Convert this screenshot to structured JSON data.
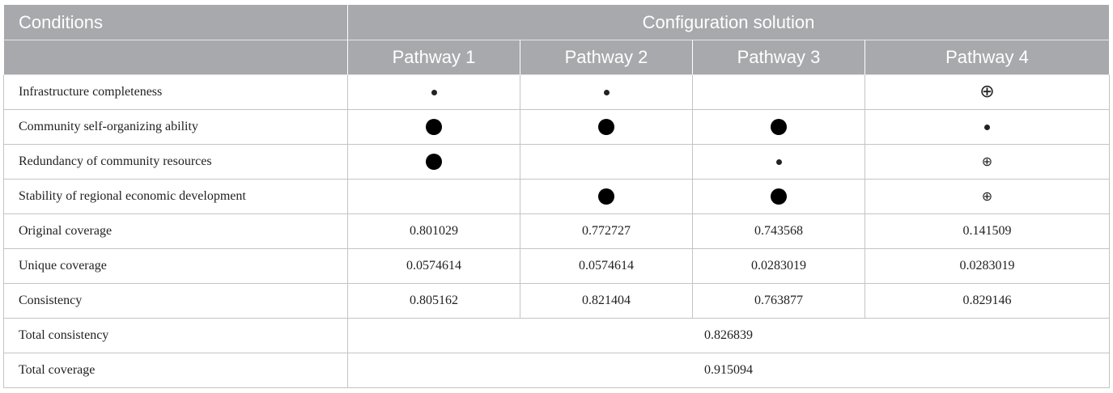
{
  "header": {
    "conditions": "Conditions",
    "configuration": "Configuration solution",
    "pathways": [
      "Pathway 1",
      "Pathway 2",
      "Pathway 3",
      "Pathway 4"
    ]
  },
  "legend_symbols": {
    "core_present": "large-filled-circle",
    "peripheral_present": "small-filled-circle",
    "core_absent": "large-circled-plus",
    "peripheral_absent": "small-circled-plus",
    "circled_plus_glyph": "⊕"
  },
  "conditions": [
    {
      "label": "Infrastructure completeness",
      "cells": [
        "small-dot",
        "small-dot",
        "",
        "oplus-big"
      ]
    },
    {
      "label": "Community self-organizing ability",
      "cells": [
        "big-dot",
        "big-dot",
        "big-dot",
        "small-dot"
      ]
    },
    {
      "label": "Redundancy of community resources",
      "cells": [
        "big-dot",
        "",
        "small-dot",
        "oplus-small"
      ]
    },
    {
      "label": "Stability of regional economic development",
      "cells": [
        "",
        "big-dot",
        "big-dot",
        "oplus-small"
      ]
    }
  ],
  "metrics": [
    {
      "label": "Original coverage",
      "values": [
        "0.801029",
        "0.772727",
        "0.743568",
        "0.141509"
      ]
    },
    {
      "label": "Unique coverage",
      "values": [
        "0.0574614",
        "0.0574614",
        "0.0283019",
        "0.0283019"
      ]
    },
    {
      "label": "Consistency",
      "values": [
        "0.805162",
        "0.821404",
        "0.763877",
        "0.829146"
      ]
    }
  ],
  "totals": [
    {
      "label": "Total consistency",
      "value": "0.826839"
    },
    {
      "label": "Total coverage",
      "value": "0.915094"
    }
  ]
}
